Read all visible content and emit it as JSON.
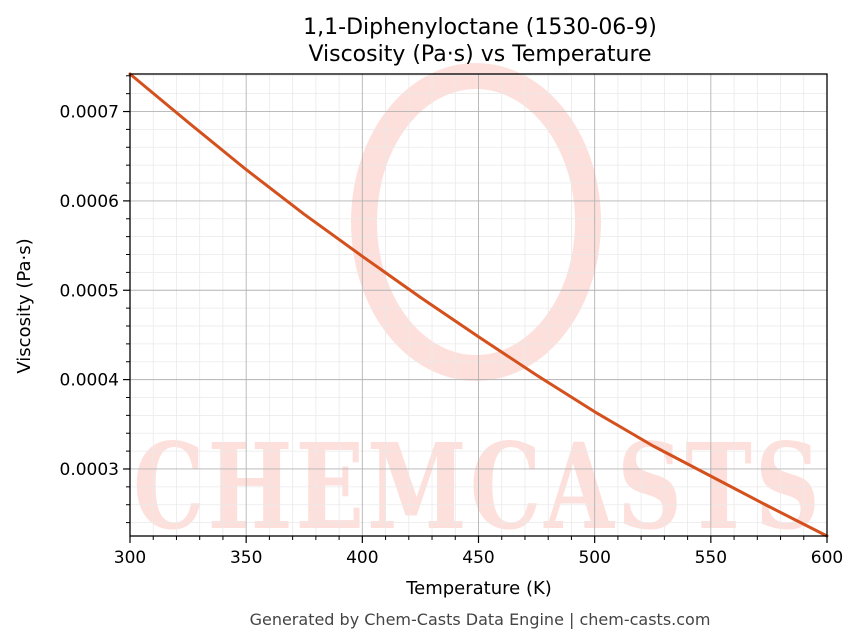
{
  "chart_data": {
    "type": "line",
    "title": "1,1-Diphenyloctane (1530-06-9)",
    "subtitle": "Viscosity (Pa·s) vs Temperature",
    "xlabel": "Temperature (K)",
    "ylabel": "Viscosity (Pa·s)",
    "xlim": [
      300,
      600
    ],
    "ylim": [
      0.000225,
      0.000742
    ],
    "x_ticks": [
      "300",
      "350",
      "400",
      "450",
      "500",
      "550",
      "600"
    ],
    "y_ticks": [
      "0.0003",
      "0.0004",
      "0.0005",
      "0.0006",
      "0.0007"
    ],
    "grid": true,
    "series": [
      {
        "color": "#d4501c",
        "x": [
          300,
          325,
          350,
          375,
          400,
          425,
          450,
          475,
          500,
          525,
          550,
          575,
          600
        ],
        "y": [
          0.000742,
          0.000688,
          0.000635,
          0.000585,
          0.000538,
          0.000492,
          0.000448,
          0.000405,
          0.000364,
          0.000326,
          0.000292,
          0.000258,
          0.000225
        ]
      }
    ]
  },
  "watermark": "CHEMCASTS",
  "footer": "Generated by Chem-Casts Data Engine | chem-casts.com"
}
